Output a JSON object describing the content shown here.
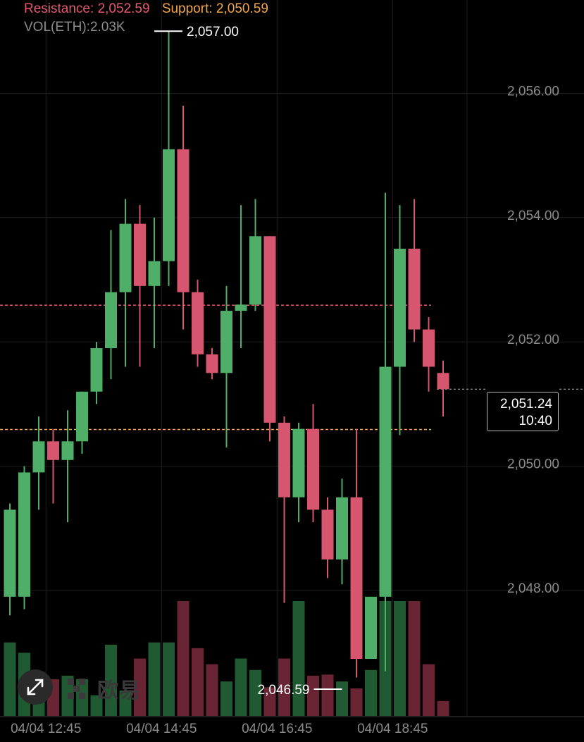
{
  "header": {
    "resistance_label": "Resistance:",
    "resistance_value": "2,052.59",
    "support_label": "Support:",
    "support_value": "2,050.59",
    "volume_text": "VOL(ETH):2.03K"
  },
  "current_price": {
    "price": "2,051.24",
    "countdown": "10:40"
  },
  "watermark": "欧易",
  "icons": {
    "expand": "expand-arrows-icon",
    "logo": "okx-logo-icon"
  },
  "colors": {
    "up": "#4fae68",
    "down": "#d5566e",
    "resistance": "#e8576f",
    "support": "#f0a64a",
    "grid": "#1e1e1e"
  },
  "chart_data": {
    "type": "candlestick",
    "pair_unit": "ETH",
    "ylim": [
      2045.5,
      2057.5
    ],
    "y_ticks": [
      {
        "value": 2048,
        "label": "2,048.00"
      },
      {
        "value": 2050,
        "label": "2,050.00"
      },
      {
        "value": 2052,
        "label": "2,052.00"
      },
      {
        "value": 2054,
        "label": "2,054.00"
      },
      {
        "value": 2056,
        "label": "2,056.00"
      }
    ],
    "x_ticks": [
      {
        "index": 2.5,
        "label": "04/04 12:45"
      },
      {
        "index": 10.5,
        "label": "04/04 14:45"
      },
      {
        "index": 18.5,
        "label": "04/04 16:45"
      },
      {
        "index": 26.5,
        "label": "04/04 18:45"
      }
    ],
    "resistance": 2052.59,
    "support": 2050.59,
    "last_price": 2051.24,
    "max_marker": {
      "index": 10,
      "value": 2057.0,
      "label": "2,057.00"
    },
    "min_marker": {
      "index": 23,
      "value": 2046.59,
      "label": "2,046.59"
    },
    "candles": [
      {
        "o": 2047.9,
        "c": 2049.3,
        "h": 2049.4,
        "l": 2047.6
      },
      {
        "o": 2047.9,
        "c": 2049.9,
        "h": 2050.0,
        "l": 2047.7
      },
      {
        "o": 2049.9,
        "c": 2050.4,
        "h": 2050.8,
        "l": 2049.3
      },
      {
        "o": 2050.4,
        "c": 2050.1,
        "h": 2050.6,
        "l": 2049.4
      },
      {
        "o": 2050.1,
        "c": 2050.4,
        "h": 2050.9,
        "l": 2049.1
      },
      {
        "o": 2050.4,
        "c": 2051.2,
        "h": 2051.2,
        "l": 2050.2
      },
      {
        "o": 2051.2,
        "c": 2051.9,
        "h": 2052.0,
        "l": 2051.0
      },
      {
        "o": 2051.9,
        "c": 2052.8,
        "h": 2053.8,
        "l": 2051.4
      },
      {
        "o": 2052.8,
        "c": 2053.9,
        "h": 2054.3,
        "l": 2051.6
      },
      {
        "o": 2053.9,
        "c": 2052.9,
        "h": 2054.2,
        "l": 2051.6
      },
      {
        "o": 2052.9,
        "c": 2053.3,
        "h": 2054.0,
        "l": 2051.9
      },
      {
        "o": 2053.3,
        "c": 2055.1,
        "h": 2057.0,
        "l": 2052.9
      },
      {
        "o": 2055.1,
        "c": 2052.8,
        "h": 2055.8,
        "l": 2052.2
      },
      {
        "o": 2052.8,
        "c": 2051.8,
        "h": 2053.0,
        "l": 2051.6
      },
      {
        "o": 2051.8,
        "c": 2051.5,
        "h": 2051.9,
        "l": 2051.4
      },
      {
        "o": 2051.5,
        "c": 2052.5,
        "h": 2052.9,
        "l": 2050.3
      },
      {
        "o": 2052.5,
        "c": 2052.6,
        "h": 2054.2,
        "l": 2051.9
      },
      {
        "o": 2052.6,
        "c": 2053.7,
        "h": 2054.3,
        "l": 2052.5
      },
      {
        "o": 2053.7,
        "c": 2050.7,
        "h": 2053.7,
        "l": 2050.4
      },
      {
        "o": 2050.7,
        "c": 2049.5,
        "h": 2050.8,
        "l": 2047.8
      },
      {
        "o": 2049.5,
        "c": 2050.6,
        "h": 2050.7,
        "l": 2049.1
      },
      {
        "o": 2050.6,
        "c": 2049.3,
        "h": 2051.0,
        "l": 2049.1
      },
      {
        "o": 2049.3,
        "c": 2048.5,
        "h": 2049.5,
        "l": 2048.2
      },
      {
        "o": 2048.5,
        "c": 2049.5,
        "h": 2049.8,
        "l": 2048.1
      },
      {
        "o": 2049.5,
        "c": 2046.9,
        "h": 2050.6,
        "l": 2046.6
      },
      {
        "o": 2046.9,
        "c": 2047.9,
        "h": 2047.9,
        "l": 2046.9
      },
      {
        "o": 2047.9,
        "c": 2051.6,
        "h": 2054.4,
        "l": 2046.7
      },
      {
        "o": 2051.6,
        "c": 2053.5,
        "h": 2054.2,
        "l": 2050.5
      },
      {
        "o": 2053.5,
        "c": 2052.2,
        "h": 2054.3,
        "l": 2052.0
      },
      {
        "o": 2052.2,
        "c": 2051.6,
        "h": 2052.4,
        "l": 2051.2
      },
      {
        "o": 2051.5,
        "c": 2051.24,
        "h": 2051.7,
        "l": 2050.8
      }
    ],
    "volumes": [
      64,
      55,
      32,
      32,
      35,
      32,
      18,
      62,
      22,
      50,
      64,
      64,
      100,
      59,
      45,
      30,
      50,
      40,
      25,
      50,
      100,
      35,
      36,
      30,
      24,
      40,
      100,
      100,
      100,
      45,
      13
    ]
  }
}
